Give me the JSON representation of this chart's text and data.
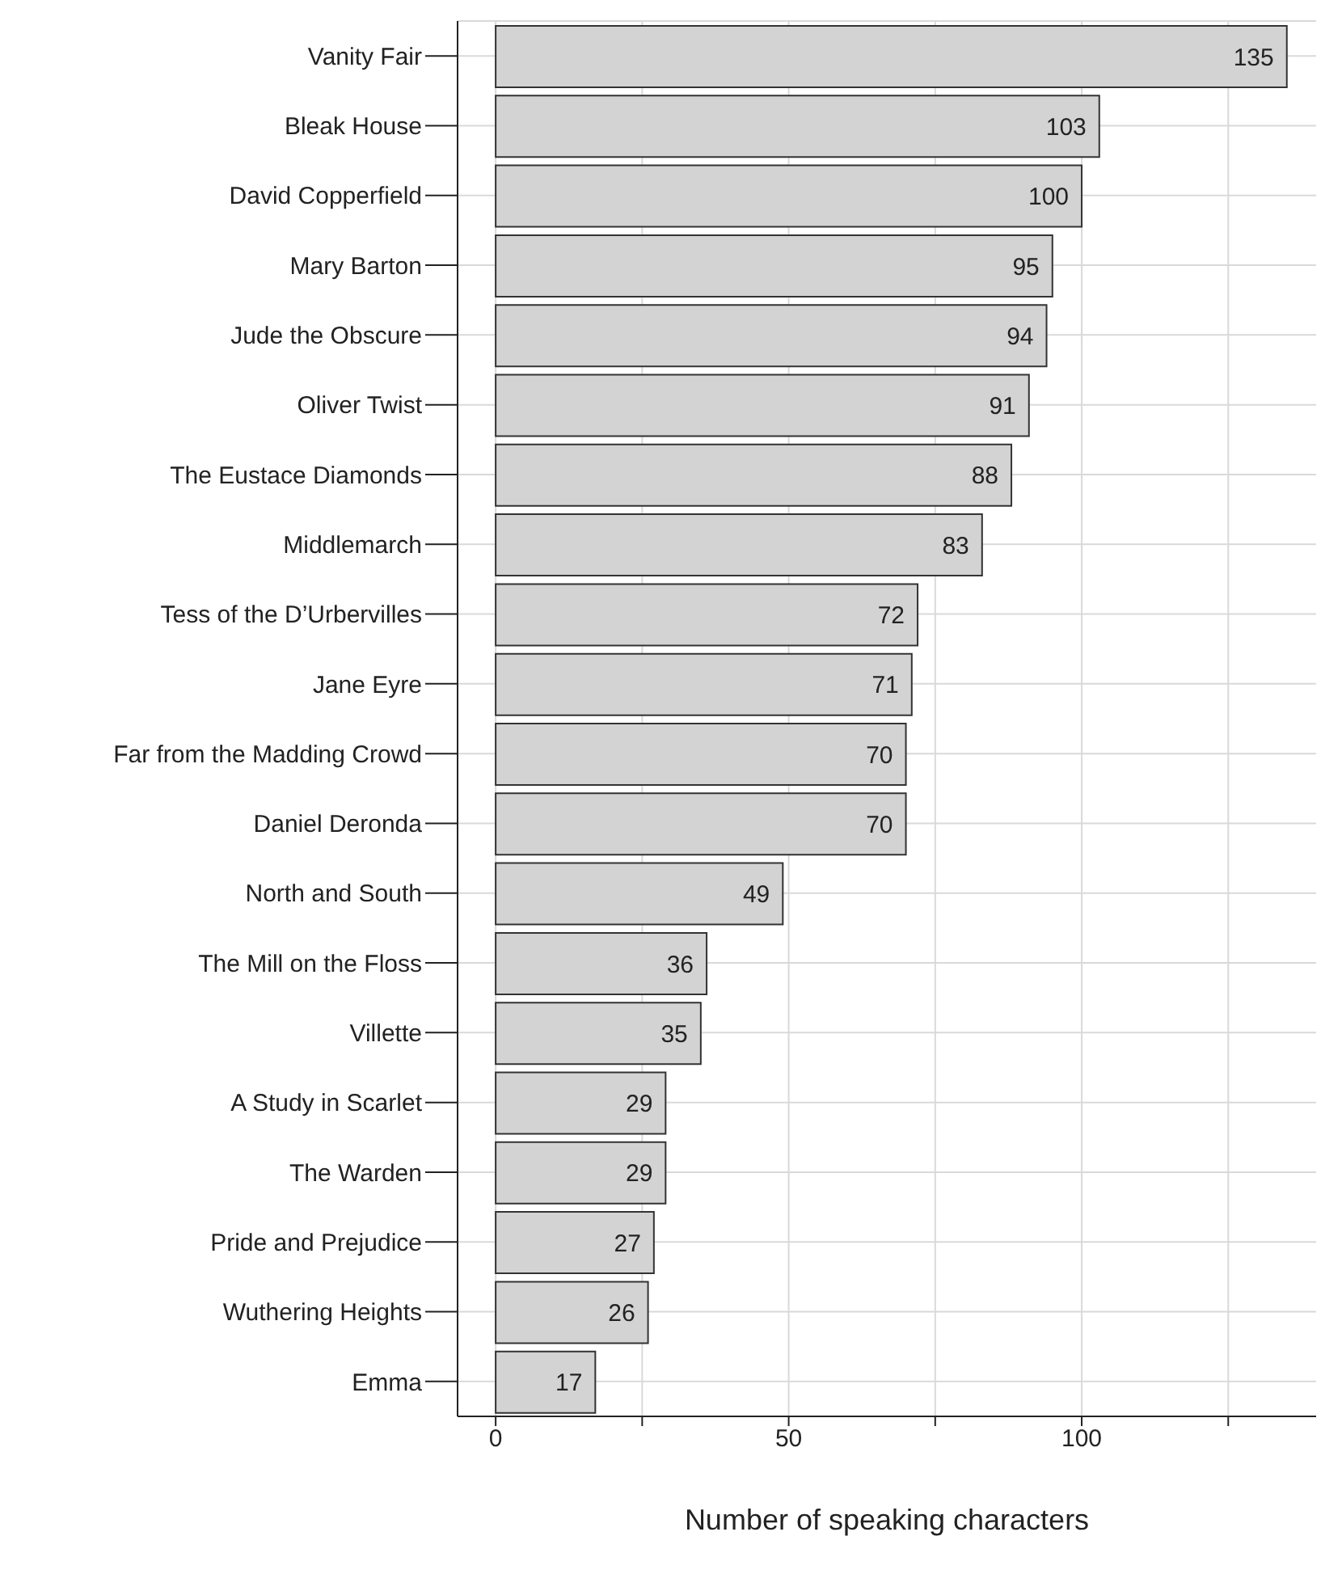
{
  "chart_data": {
    "type": "bar",
    "orientation": "horizontal",
    "xlabel": "Number of speaking characters",
    "categories": [
      "Vanity Fair",
      "Bleak House",
      "David Copperfield",
      "Mary Barton",
      "Jude the Obscure",
      "Oliver Twist",
      "The Eustace Diamonds",
      "Middlemarch",
      "Tess of the D’Urbervilles",
      "Jane Eyre",
      "Far from the Madding Crowd",
      "Daniel Deronda",
      "North and South",
      "The Mill on the Floss",
      "Villette",
      "A Study in Scarlet",
      "The Warden",
      "Pride and Prejudice",
      "Wuthering Heights",
      "Emma"
    ],
    "values": [
      135,
      103,
      100,
      95,
      94,
      91,
      88,
      83,
      72,
      71,
      70,
      70,
      49,
      36,
      35,
      29,
      29,
      27,
      26,
      17
    ],
    "color": "#d3d3d3",
    "data_labels": true,
    "grid": true,
    "legend": false,
    "xlim": [
      -6.5,
      140
    ],
    "xticks": [
      0,
      {
        "value": 25,
        "label": null
      },
      50,
      {
        "value": 75,
        "label": null
      },
      100,
      {
        "value": 125,
        "label": null
      }
    ]
  }
}
